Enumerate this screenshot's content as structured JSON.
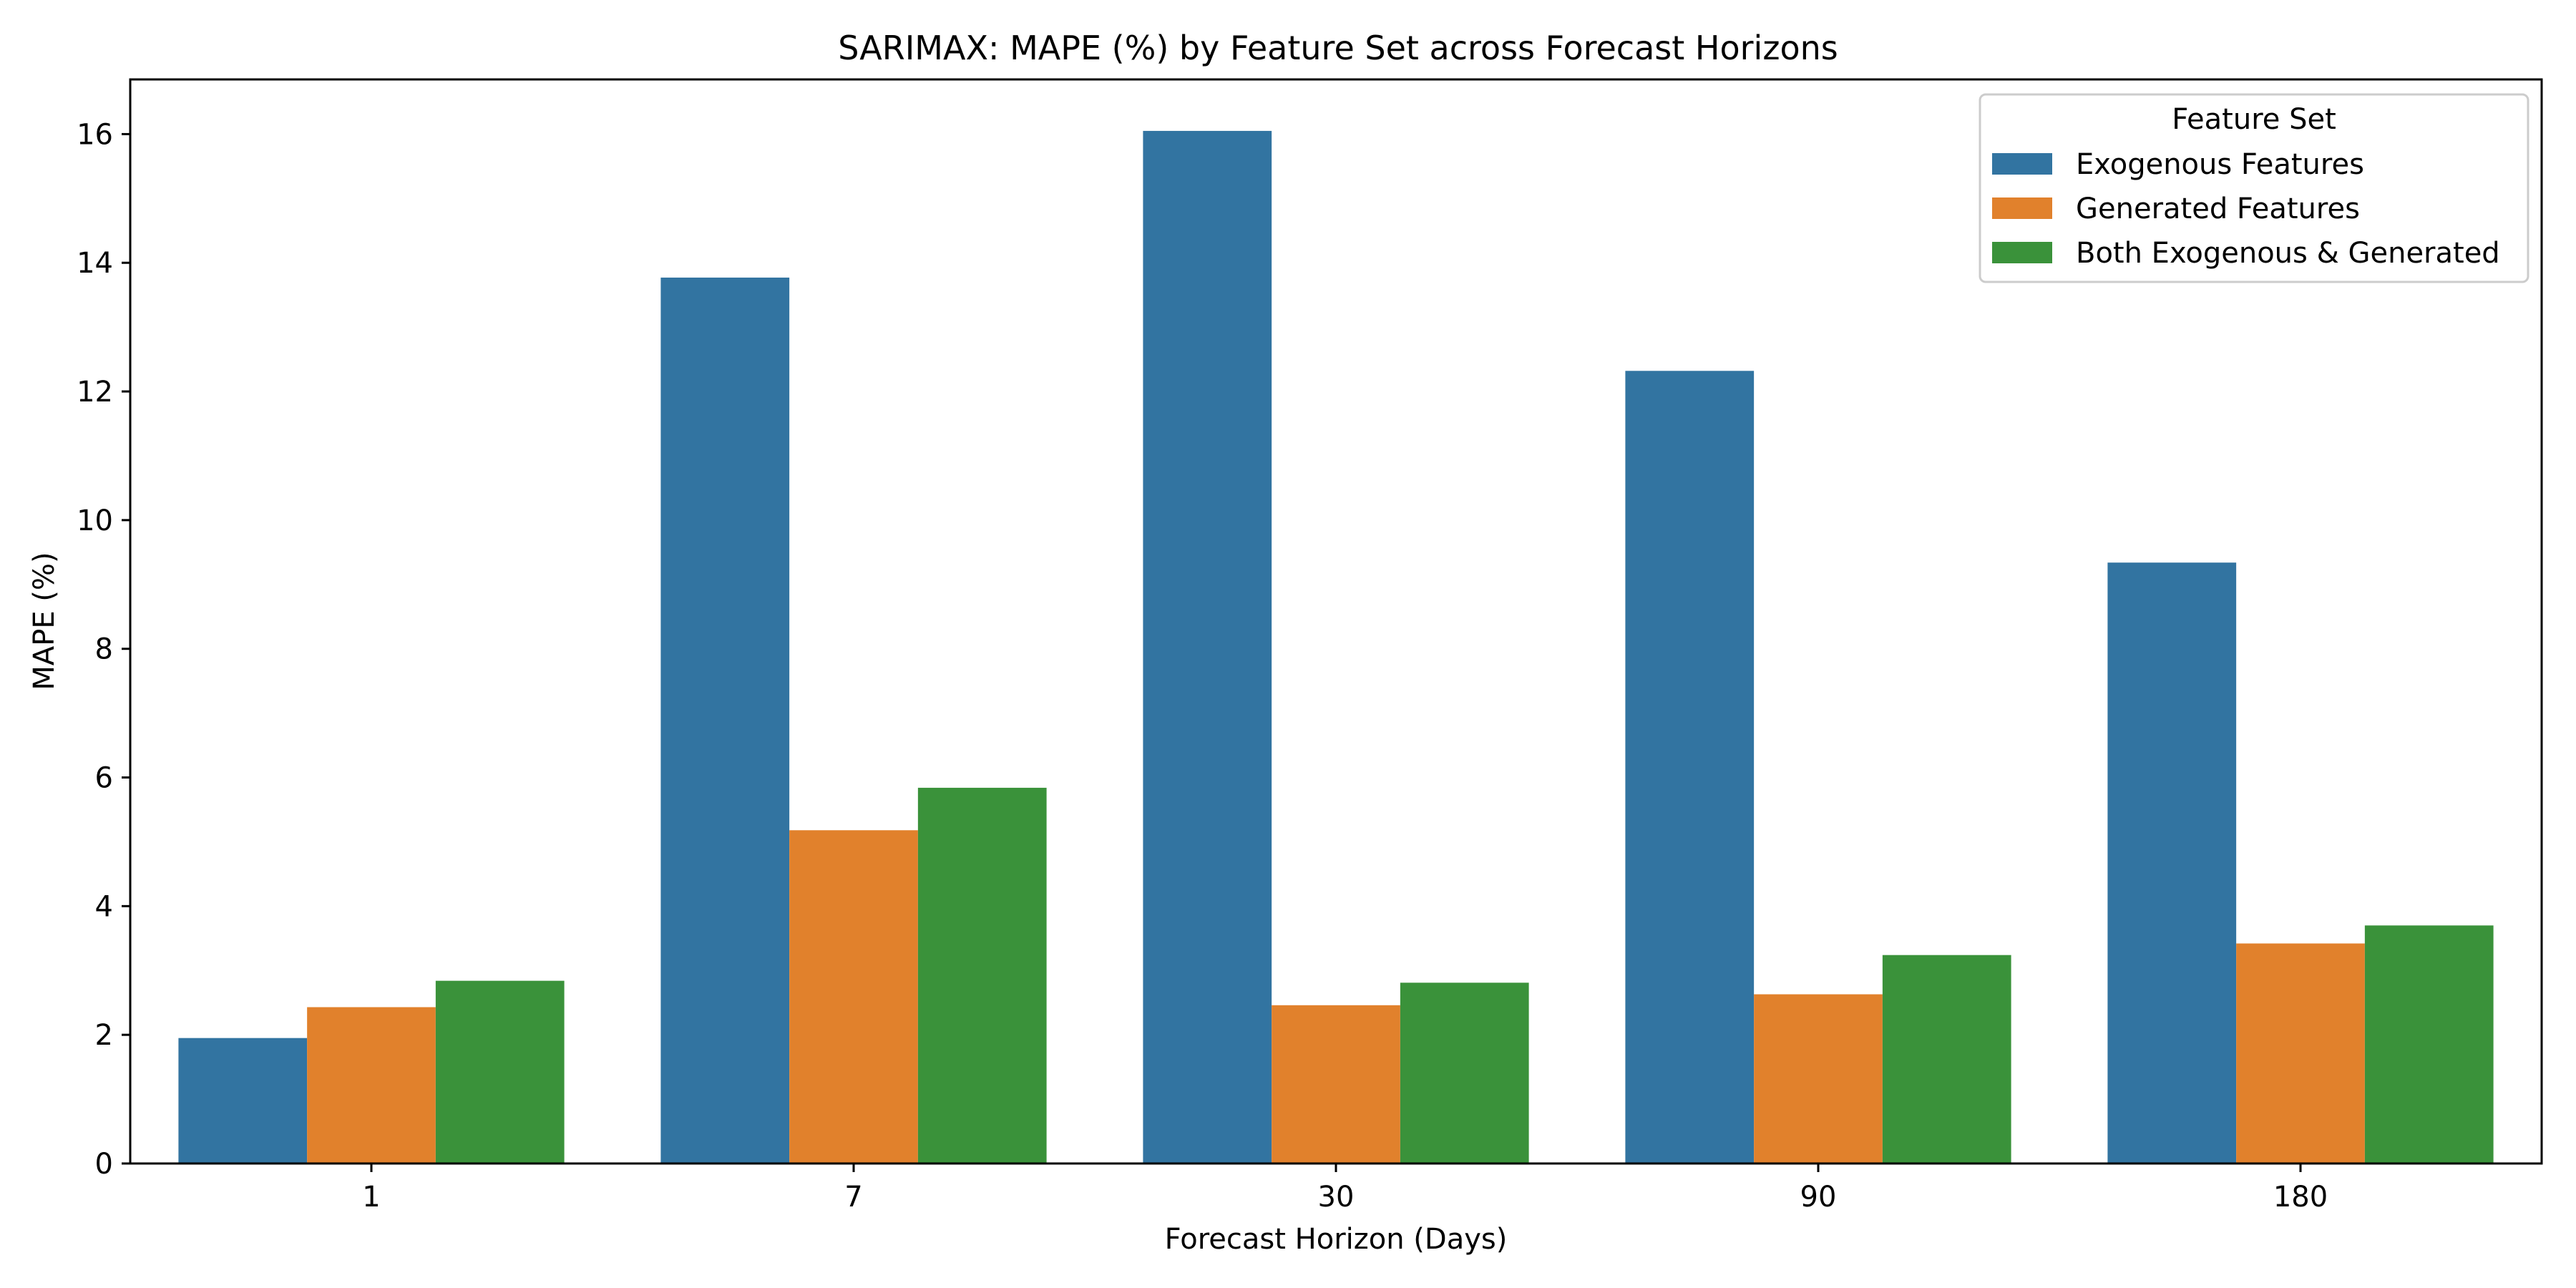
{
  "chart_data": {
    "type": "bar",
    "title": "SARIMAX: MAPE (%) by Feature Set across Forecast Horizons",
    "xlabel": "Forecast Horizon (Days)",
    "ylabel": "MAPE (%)",
    "categories": [
      "1",
      "7",
      "30",
      "90",
      "180"
    ],
    "ylim": [
      0,
      16.85
    ],
    "yticks": [
      0,
      2,
      4,
      6,
      8,
      10,
      12,
      14,
      16
    ],
    "grid": false,
    "legend": {
      "title": "Feature Set",
      "placement": "top-right"
    },
    "series": [
      {
        "name": "Exogenous Features",
        "color": "#3274a1",
        "values": [
          1.95,
          13.77,
          16.05,
          12.32,
          9.34
        ]
      },
      {
        "name": "Generated Features",
        "color": "#e1812c",
        "values": [
          2.43,
          5.18,
          2.46,
          2.63,
          3.42
        ]
      },
      {
        "name": "Both Exogenous & Generated",
        "color": "#3a923a",
        "values": [
          2.84,
          5.84,
          2.81,
          3.24,
          3.7
        ]
      }
    ]
  }
}
